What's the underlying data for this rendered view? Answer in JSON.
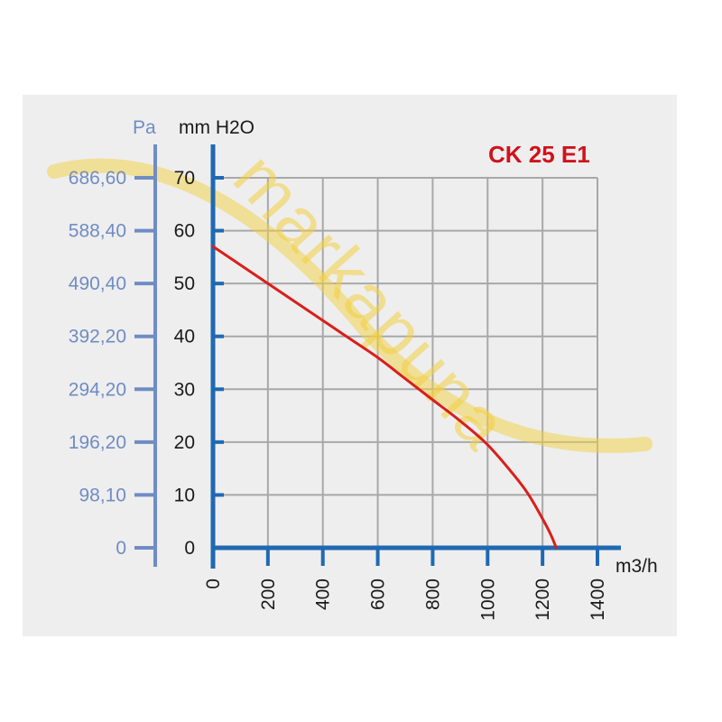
{
  "chart_data": {
    "type": "line",
    "title": "CK 25 E1",
    "x_unit": "m3/h",
    "y_left_unit": "Pa",
    "y_right_unit": "mm H2O",
    "xlim": [
      0,
      1400
    ],
    "ylim": [
      0,
      70
    ],
    "x_ticks": [
      "0",
      "200",
      "400",
      "600",
      "800",
      "1000",
      "1200",
      "1400"
    ],
    "y_ticks_mm": [
      "0",
      "10",
      "20",
      "30",
      "40",
      "50",
      "60",
      "70"
    ],
    "y_ticks_pa": [
      "0",
      "98,10",
      "196,20",
      "294,20",
      "392,20",
      "490,40",
      "588,40",
      "686,60"
    ],
    "grid": true,
    "series": [
      {
        "color": "#d91f1a",
        "x": [
          0,
          100,
          200,
          300,
          400,
          500,
          600,
          700,
          800,
          900,
          1000,
          1100,
          1150,
          1200,
          1230,
          1250
        ],
        "y": [
          57,
          53.5,
          50,
          46.5,
          43,
          39.5,
          36,
          32,
          28,
          24,
          19.5,
          13.5,
          10,
          5.5,
          2.5,
          0
        ]
      }
    ],
    "watermark": "markapuna"
  }
}
